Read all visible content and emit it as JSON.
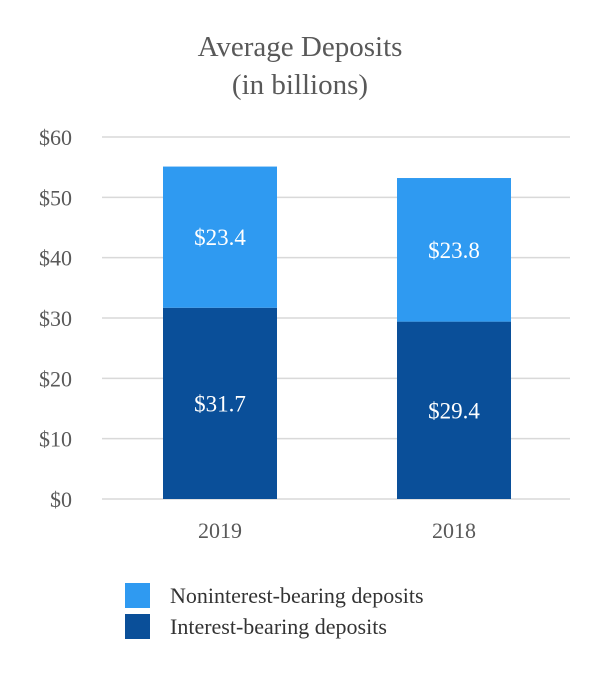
{
  "chart_data": {
    "type": "bar",
    "stacked": true,
    "title": "Average Deposits",
    "subtitle": "(in billions)",
    "categories": [
      "2019",
      "2018"
    ],
    "series": [
      {
        "name": "Interest-bearing deposits",
        "values": [
          31.7,
          29.4
        ],
        "labels": [
          "$31.7",
          "$29.4"
        ],
        "color": "#0a4f99"
      },
      {
        "name": "Noninterest-bearing deposits",
        "values": [
          23.4,
          23.8
        ],
        "labels": [
          "$23.4",
          "$23.8"
        ],
        "color": "#2f9af1"
      }
    ],
    "ylim": [
      0,
      60
    ],
    "yticks": [
      0,
      10,
      20,
      30,
      40,
      50,
      60
    ],
    "ytick_labels": [
      "$0",
      "$10",
      "$20",
      "$30",
      "$40",
      "$50",
      "$60"
    ],
    "grid": true,
    "gridline_color": "#d9d9d9",
    "legend": {
      "placement": "bottom",
      "order": [
        "Noninterest-bearing deposits",
        "Interest-bearing deposits"
      ]
    },
    "xlabel": "",
    "ylabel": ""
  }
}
